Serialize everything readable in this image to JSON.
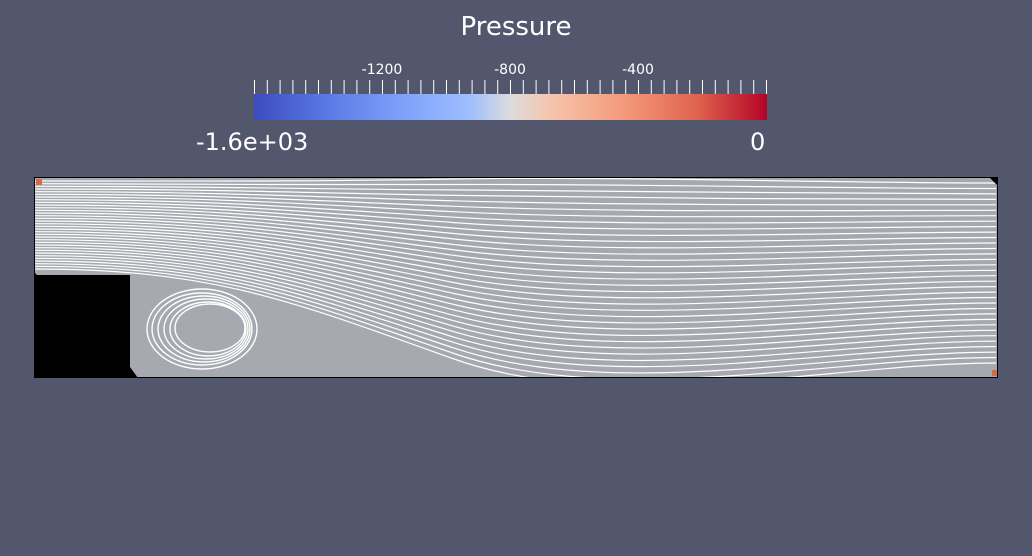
{
  "colorbar": {
    "title": "Pressure",
    "tick_labels": [
      "-1200",
      "-800",
      "-400"
    ],
    "range_min_label": "-1.6e+03",
    "range_max_label": "0",
    "colormap": [
      "#3b4cc0",
      "#dddcdc",
      "#b40426"
    ]
  },
  "colors": {
    "background": "#52576e",
    "domain_fill": "#a6a9b0",
    "streamline": "#ffffff",
    "obstacle": "#000000"
  }
}
